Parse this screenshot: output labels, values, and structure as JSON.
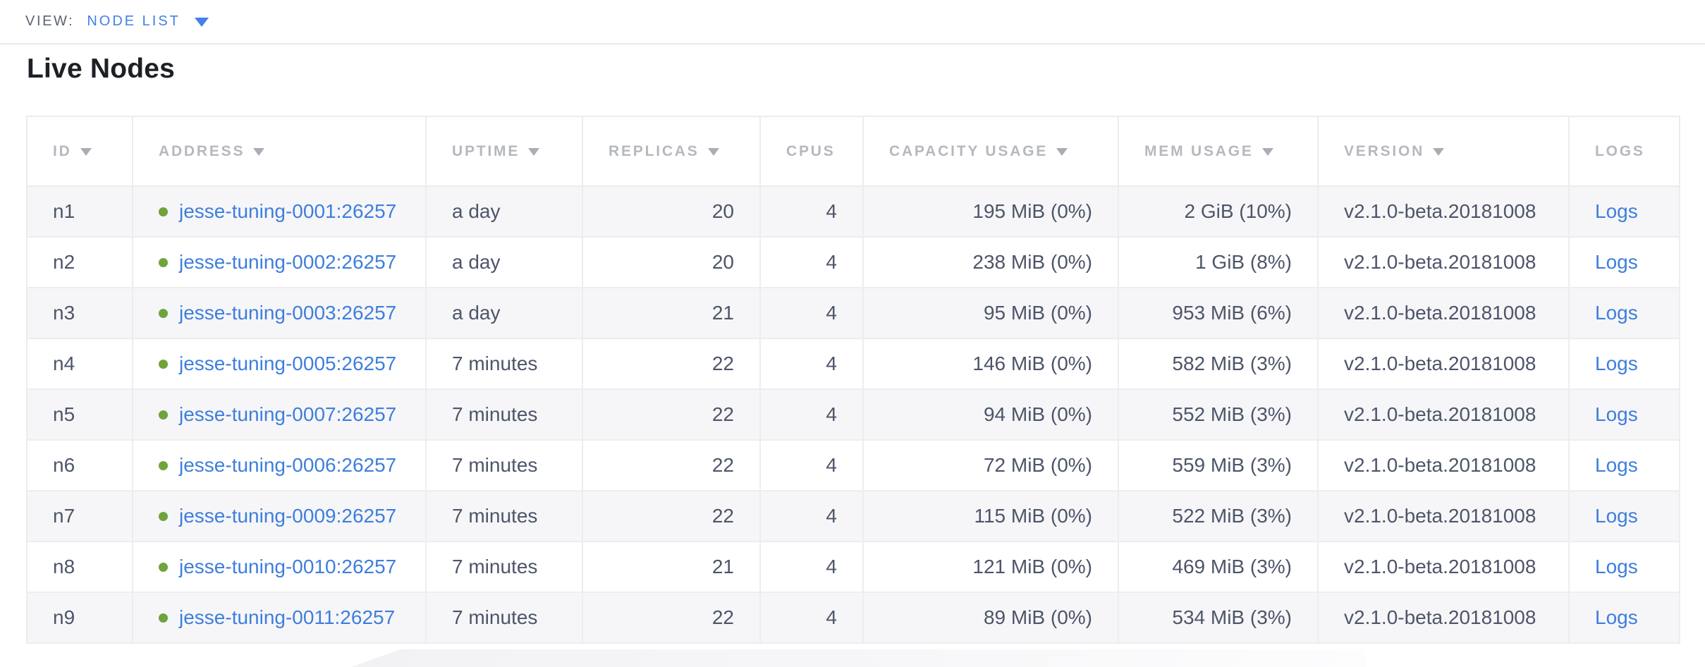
{
  "view_bar": {
    "label": "VIEW:",
    "selected": "NODE LIST",
    "dropdown_icon": "caret-down"
  },
  "page": {
    "title": "Live Nodes"
  },
  "table": {
    "columns": [
      {
        "key": "id",
        "label": "ID",
        "sortable": true,
        "align": "left"
      },
      {
        "key": "address",
        "label": "ADDRESS",
        "sortable": true,
        "align": "left"
      },
      {
        "key": "uptime",
        "label": "UPTIME",
        "sortable": true,
        "align": "left"
      },
      {
        "key": "replicas",
        "label": "REPLICAS",
        "sortable": true,
        "align": "right"
      },
      {
        "key": "cpus",
        "label": "CPUS",
        "sortable": false,
        "align": "right"
      },
      {
        "key": "capacity_usage",
        "label": "CAPACITY USAGE",
        "sortable": true,
        "align": "right"
      },
      {
        "key": "mem_usage",
        "label": "MEM USAGE",
        "sortable": true,
        "align": "right"
      },
      {
        "key": "version",
        "label": "VERSION",
        "sortable": true,
        "align": "left"
      },
      {
        "key": "logs",
        "label": "LOGS",
        "sortable": false,
        "align": "left"
      }
    ],
    "rows": [
      {
        "id": "n1",
        "address": "jesse-tuning-0001:26257",
        "status": "live",
        "uptime": "a day",
        "replicas": "20",
        "cpus": "4",
        "capacity_usage": "195 MiB (0%)",
        "mem_usage": "2 GiB (10%)",
        "version": "v2.1.0-beta.20181008",
        "logs": "Logs"
      },
      {
        "id": "n2",
        "address": "jesse-tuning-0002:26257",
        "status": "live",
        "uptime": "a day",
        "replicas": "20",
        "cpus": "4",
        "capacity_usage": "238 MiB (0%)",
        "mem_usage": "1 GiB (8%)",
        "version": "v2.1.0-beta.20181008",
        "logs": "Logs"
      },
      {
        "id": "n3",
        "address": "jesse-tuning-0003:26257",
        "status": "live",
        "uptime": "a day",
        "replicas": "21",
        "cpus": "4",
        "capacity_usage": "95 MiB (0%)",
        "mem_usage": "953 MiB (6%)",
        "version": "v2.1.0-beta.20181008",
        "logs": "Logs"
      },
      {
        "id": "n4",
        "address": "jesse-tuning-0005:26257",
        "status": "live",
        "uptime": "7 minutes",
        "replicas": "22",
        "cpus": "4",
        "capacity_usage": "146 MiB (0%)",
        "mem_usage": "582 MiB (3%)",
        "version": "v2.1.0-beta.20181008",
        "logs": "Logs"
      },
      {
        "id": "n5",
        "address": "jesse-tuning-0007:26257",
        "status": "live",
        "uptime": "7 minutes",
        "replicas": "22",
        "cpus": "4",
        "capacity_usage": "94 MiB (0%)",
        "mem_usage": "552 MiB (3%)",
        "version": "v2.1.0-beta.20181008",
        "logs": "Logs"
      },
      {
        "id": "n6",
        "address": "jesse-tuning-0006:26257",
        "status": "live",
        "uptime": "7 minutes",
        "replicas": "22",
        "cpus": "4",
        "capacity_usage": "72 MiB (0%)",
        "mem_usage": "559 MiB (3%)",
        "version": "v2.1.0-beta.20181008",
        "logs": "Logs"
      },
      {
        "id": "n7",
        "address": "jesse-tuning-0009:26257",
        "status": "live",
        "uptime": "7 minutes",
        "replicas": "22",
        "cpus": "4",
        "capacity_usage": "115 MiB (0%)",
        "mem_usage": "522 MiB (3%)",
        "version": "v2.1.0-beta.20181008",
        "logs": "Logs"
      },
      {
        "id": "n8",
        "address": "jesse-tuning-0010:26257",
        "status": "live",
        "uptime": "7 minutes",
        "replicas": "21",
        "cpus": "4",
        "capacity_usage": "121 MiB (0%)",
        "mem_usage": "469 MiB (3%)",
        "version": "v2.1.0-beta.20181008",
        "logs": "Logs"
      },
      {
        "id": "n9",
        "address": "jesse-tuning-0011:26257",
        "status": "live",
        "uptime": "7 minutes",
        "replicas": "22",
        "cpus": "4",
        "capacity_usage": "89 MiB (0%)",
        "mem_usage": "534 MiB (3%)",
        "version": "v2.1.0-beta.20181008",
        "logs": "Logs"
      }
    ]
  },
  "icons": {
    "sort_desc": "triangle-down",
    "view_dropdown": "triangle-down",
    "node_status": "green-dot"
  },
  "colors": {
    "accent_blue": "#4181e8",
    "link_blue": "#3e7edd",
    "live_dot_green": "#6ea43c",
    "header_text_gray": "#b5b8be",
    "cell_text": "#4d5569",
    "row_stripe": "#f6f6f8"
  }
}
